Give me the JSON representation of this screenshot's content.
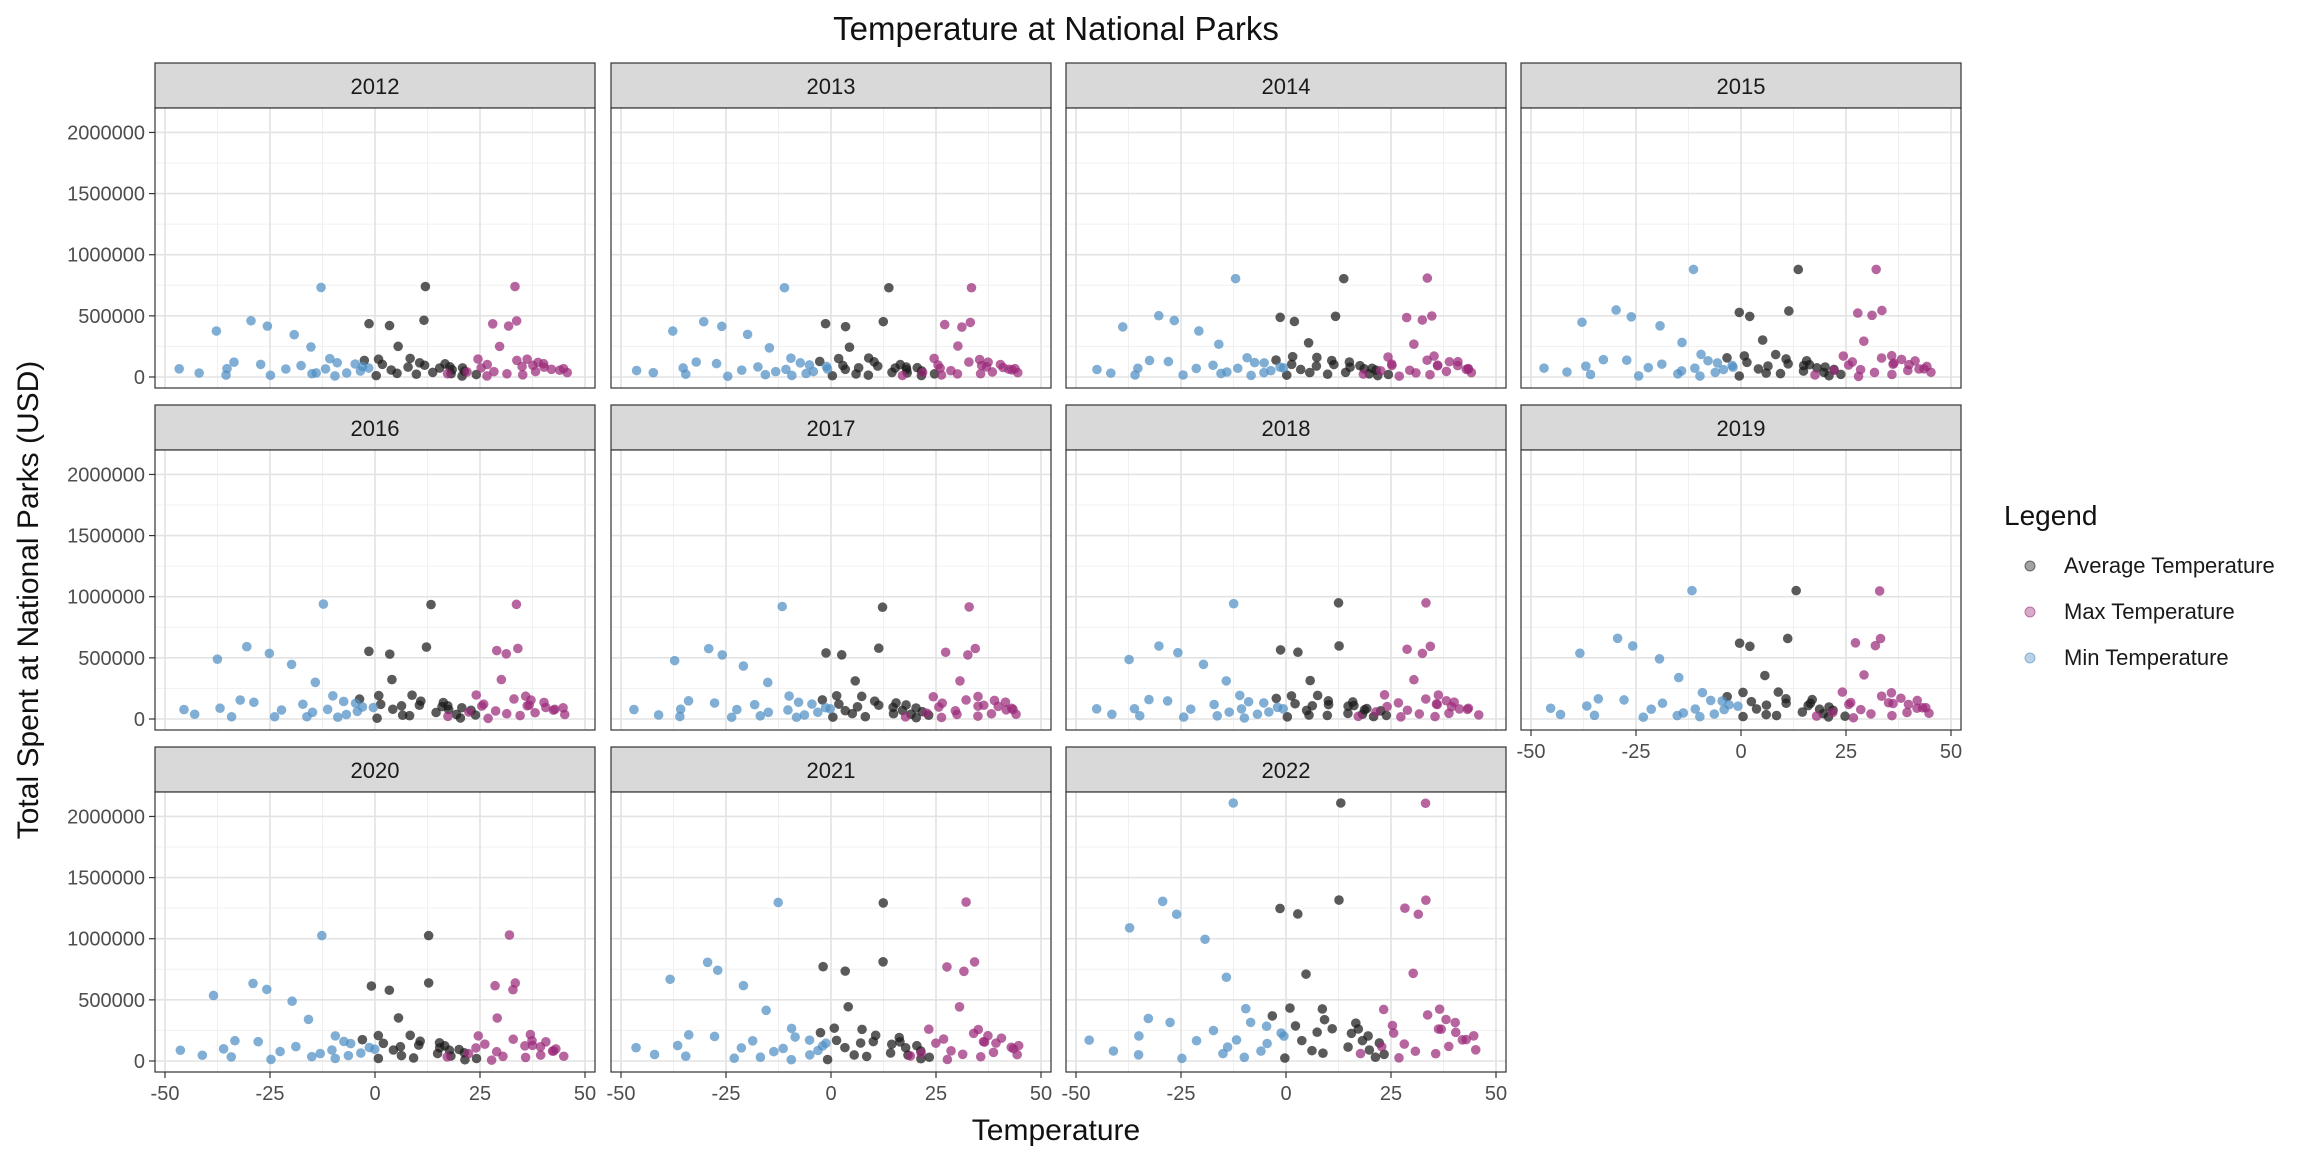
{
  "chart_data": {
    "type": "scatter",
    "title": "Temperature at National Parks",
    "xlabel": "Temperature",
    "ylabel": "Total Spent at National Parks (USD)",
    "xlim": [
      -50,
      50
    ],
    "ylim": [
      0,
      2000000
    ],
    "x_ticks": [
      -50,
      -25,
      0,
      25,
      50
    ],
    "y_ticks": [
      0,
      500000,
      1000000,
      1500000,
      2000000
    ],
    "grid": true,
    "legend": {
      "title": "Legend",
      "position": "right",
      "entries": [
        {
          "label": "Average Temperature",
          "color": "#1a1a1a"
        },
        {
          "label": "Max Temperature",
          "color": "#9b2a7a"
        },
        {
          "label": "Min Temperature",
          "color": "#4f8fc4"
        }
      ]
    },
    "facets": [
      {
        "label": "2012",
        "max_y": 740000
      },
      {
        "label": "2013",
        "max_y": 730000
      },
      {
        "label": "2014",
        "max_y": 810000
      },
      {
        "label": "2015",
        "max_y": 880000
      },
      {
        "label": "2016",
        "max_y": 940000
      },
      {
        "label": "2017",
        "max_y": 920000
      },
      {
        "label": "2018",
        "max_y": 950000
      },
      {
        "label": "2019",
        "max_y": 1050000
      },
      {
        "label": "2020",
        "max_y": 1030000
      },
      {
        "label": "2021",
        "max_y": 1300000
      },
      {
        "label": "2022",
        "max_y": 2110000
      }
    ],
    "series": [
      {
        "name": "Average Temperature",
        "color": "#1a1a1a",
        "points": [
          [
            13,
            740000
          ],
          [
            -1,
            440000
          ],
          [
            3,
            420000
          ],
          [
            12,
            460000
          ],
          [
            5,
            250000
          ],
          [
            8,
            150000
          ],
          [
            10,
            120000
          ],
          [
            2,
            100000
          ],
          [
            15,
            80000
          ],
          [
            18,
            60000
          ],
          [
            20,
            70000
          ],
          [
            6,
            30000
          ],
          [
            9,
            20000
          ],
          [
            0,
            10000
          ],
          [
            11,
            90000
          ],
          [
            14,
            40000
          ],
          [
            16,
            110000
          ],
          [
            22,
            50000
          ],
          [
            4,
            60000
          ],
          [
            7,
            80000
          ],
          [
            -3,
            130000
          ],
          [
            19,
            30000
          ],
          [
            24,
            20000
          ],
          [
            1,
            150000
          ],
          [
            17,
            90000
          ],
          [
            21,
            10000
          ]
        ]
      },
      {
        "name": "Max Temperature",
        "color": "#9b2a7a",
        "points": [
          [
            33,
            740000
          ],
          [
            28,
            440000
          ],
          [
            32,
            420000
          ],
          [
            34,
            460000
          ],
          [
            30,
            250000
          ],
          [
            36,
            150000
          ],
          [
            38,
            120000
          ],
          [
            26,
            100000
          ],
          [
            40,
            80000
          ],
          [
            42,
            60000
          ],
          [
            44,
            70000
          ],
          [
            31,
            30000
          ],
          [
            35,
            20000
          ],
          [
            27,
            10000
          ],
          [
            37,
            90000
          ],
          [
            39,
            40000
          ],
          [
            41,
            110000
          ],
          [
            29,
            50000
          ],
          [
            43,
            60000
          ],
          [
            25,
            80000
          ],
          [
            22,
            40000
          ],
          [
            18,
            20000
          ],
          [
            33,
            130000
          ],
          [
            45,
            30000
          ],
          [
            24,
            150000
          ],
          [
            36,
            90000
          ]
        ]
      },
      {
        "name": "Min Temperature",
        "color": "#4f8fc4",
        "points": [
          [
            -12,
            740000
          ],
          [
            -38,
            380000
          ],
          [
            -30,
            460000
          ],
          [
            -26,
            420000
          ],
          [
            -20,
            350000
          ],
          [
            -15,
            240000
          ],
          [
            -10,
            150000
          ],
          [
            -8,
            110000
          ],
          [
            -5,
            100000
          ],
          [
            -2,
            80000
          ],
          [
            -46,
            60000
          ],
          [
            -42,
            30000
          ],
          [
            -35,
            20000
          ],
          [
            -33,
            120000
          ],
          [
            -24,
            10000
          ],
          [
            -18,
            90000
          ],
          [
            -14,
            40000
          ],
          [
            -11,
            60000
          ],
          [
            -6,
            30000
          ],
          [
            -28,
            110000
          ],
          [
            -22,
            60000
          ],
          [
            -16,
            20000
          ],
          [
            -4,
            50000
          ],
          [
            -1,
            70000
          ],
          [
            -36,
            70000
          ],
          [
            -9,
            10000
          ]
        ]
      }
    ]
  }
}
